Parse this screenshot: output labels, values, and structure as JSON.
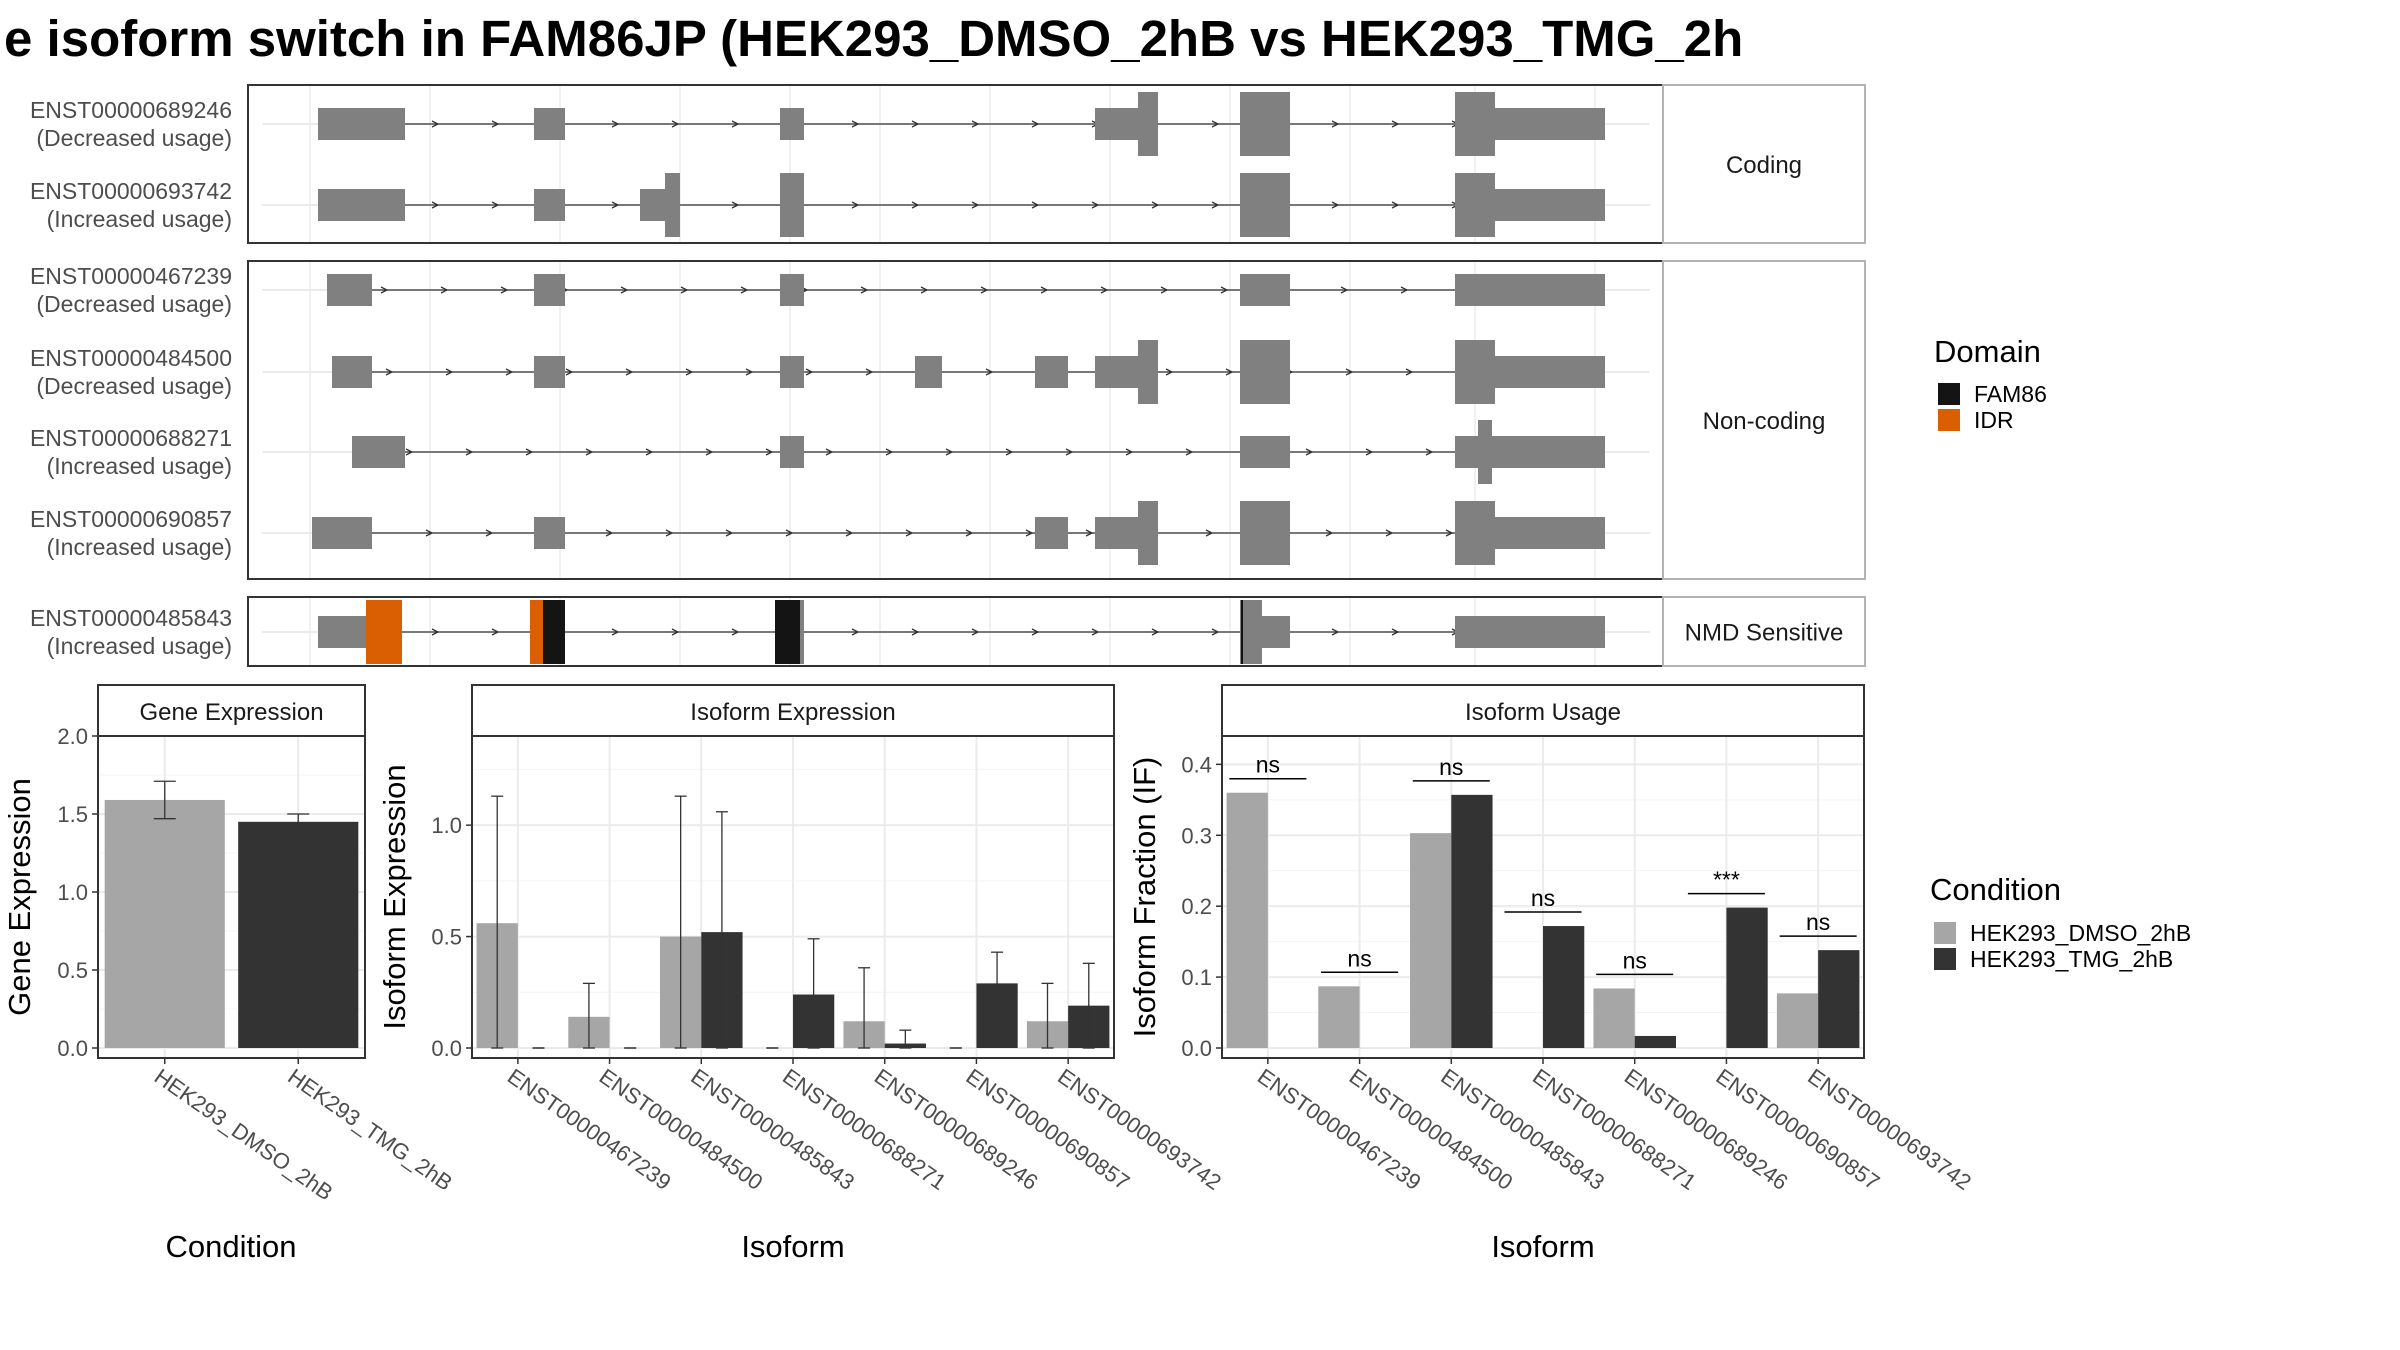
{
  "title": "e isoform switch in FAM86JP (HEK293_DMSO_2hB vs HEK293_TMG_2h",
  "colors": {
    "exon": "#808080",
    "FAM86": "#141414",
    "IDR": "#d95f02",
    "dmso": "#a6a6a6",
    "tmg": "#333333",
    "panel_border": "#333333",
    "strip_border": "#b3b3b3",
    "grid": "#ebebeb"
  },
  "structure": {
    "groups": [
      {
        "label": "Coding",
        "transcripts": [
          {
            "id": "ENST00000689246",
            "usage": "(Decreased usage)"
          },
          {
            "id": "ENST00000693742",
            "usage": "(Increased usage)"
          }
        ]
      },
      {
        "label": "Non-coding",
        "transcripts": [
          {
            "id": "ENST00000467239",
            "usage": "(Decreased usage)"
          },
          {
            "id": "ENST00000484500",
            "usage": "(Decreased usage)"
          },
          {
            "id": "ENST00000688271",
            "usage": "(Increased usage)"
          },
          {
            "id": "ENST00000690857",
            "usage": "(Increased usage)"
          }
        ]
      },
      {
        "label": "NMD Sensitive",
        "transcripts": [
          {
            "id": "ENST00000485843",
            "usage": "(Increased usage)"
          }
        ]
      }
    ]
  },
  "legend_domain": {
    "title": "Domain",
    "items": [
      {
        "label": "FAM86",
        "color": "#141414"
      },
      {
        "label": "IDR",
        "color": "#d95f02"
      }
    ]
  },
  "legend_condition": {
    "title": "Condition",
    "items": [
      {
        "label": "HEK293_DMSO_2hB",
        "color": "#a6a6a6"
      },
      {
        "label": "HEK293_TMG_2hB",
        "color": "#333333"
      }
    ]
  },
  "chart_data": [
    {
      "type": "bar",
      "title": "Gene Expression",
      "xlabel": "Condition",
      "ylabel": "Gene Expression",
      "categories": [
        "HEK293_DMSO_2hB",
        "HEK293_TMG_2hB"
      ],
      "values": [
        1.59,
        1.45
      ],
      "error": [
        [
          1.47,
          1.71
        ],
        [
          1.4,
          1.5
        ]
      ],
      "ylim": [
        0,
        2.0
      ],
      "yticks": [
        "0.0",
        "0.5",
        "1.0",
        "1.5",
        "2.0"
      ]
    },
    {
      "type": "bar",
      "title": "Isoform Expression",
      "xlabel": "Isoform",
      "ylabel": "Isoform Expression",
      "categories": [
        "ENST00000467239",
        "ENST00000484500",
        "ENST00000485843",
        "ENST00000688271",
        "ENST00000689246",
        "ENST00000690857",
        "ENST00000693742"
      ],
      "series": [
        {
          "name": "HEK293_DMSO_2hB",
          "values": [
            0.56,
            0.14,
            0.5,
            0.0,
            0.12,
            0.0,
            0.12
          ],
          "error": [
            [
              0.0,
              1.13
            ],
            [
              0.0,
              0.29
            ],
            [
              0.0,
              1.13
            ],
            [
              0.0,
              0.0
            ],
            [
              0.0,
              0.36
            ],
            [
              0.0,
              0.0
            ],
            [
              0.0,
              0.29
            ]
          ]
        },
        {
          "name": "HEK293_TMG_2hB",
          "values": [
            0.0,
            0.0,
            0.52,
            0.24,
            0.02,
            0.29,
            0.19
          ],
          "error": [
            [
              0.0,
              0.0
            ],
            [
              0.0,
              0.0
            ],
            [
              0.0,
              1.06
            ],
            [
              0.0,
              0.49
            ],
            [
              0.0,
              0.08
            ],
            [
              0.15,
              0.43
            ],
            [
              0.0,
              0.38
            ]
          ]
        }
      ],
      "ylim": [
        0,
        1.4
      ],
      "yticks": [
        "0.0",
        "0.5",
        "1.0"
      ]
    },
    {
      "type": "bar",
      "title": "Isoform Usage",
      "xlabel": "Isoform",
      "ylabel": "Isoform Fraction (IF)",
      "categories": [
        "ENST00000467239",
        "ENST00000484500",
        "ENST00000485843",
        "ENST00000688271",
        "ENST00000689246",
        "ENST00000690857",
        "ENST00000693742"
      ],
      "series": [
        {
          "name": "HEK293_DMSO_2hB",
          "values": [
            0.36,
            0.087,
            0.303,
            0.0,
            0.084,
            0.0,
            0.077
          ]
        },
        {
          "name": "HEK293_TMG_2hB",
          "values": [
            0.0,
            0.0,
            0.357,
            0.172,
            0.017,
            0.198,
            0.138
          ]
        }
      ],
      "significance": [
        "ns",
        "ns",
        "ns",
        "ns",
        "ns",
        "***",
        "ns"
      ],
      "ylim": [
        0,
        0.44
      ],
      "yticks": [
        "0.0",
        "0.1",
        "0.2",
        "0.3",
        "0.4"
      ]
    }
  ]
}
